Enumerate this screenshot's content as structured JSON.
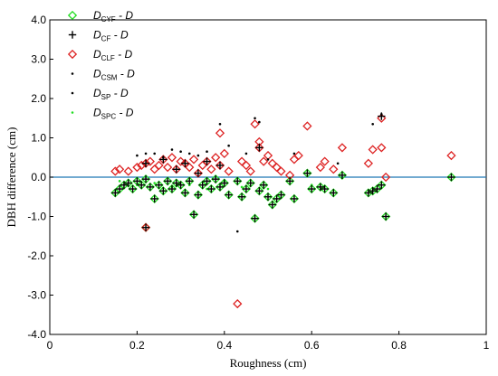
{
  "chart_data": {
    "type": "scatter",
    "title": "",
    "xlabel": "Roughness (cm)",
    "ylabel": "DBH difference (cm)",
    "xlim": [
      0,
      1
    ],
    "ylim": [
      -4,
      4
    ],
    "xticks": [
      0,
      0.2,
      0.4,
      0.6,
      0.8,
      1
    ],
    "xtick_labels": [
      "0",
      "0.2",
      "0.4",
      "0.6",
      "0.8",
      "1"
    ],
    "yticks": [
      -4,
      -3,
      -2,
      -1,
      0,
      1,
      2,
      3,
      4
    ],
    "ytick_labels": [
      "-4.0",
      "-3.0",
      "-2.0",
      "-1.0",
      "0.0",
      "1.0",
      "2.0",
      "3.0",
      "4.0"
    ],
    "grid": false,
    "reference_line": {
      "y": 0,
      "color": "#1f77b4"
    },
    "legend_position": "top-left",
    "legend": [
      {
        "main": "D",
        "sub": "CYF",
        "suffix": " - D",
        "marker": "diamond",
        "color": "#22dd22"
      },
      {
        "main": "D",
        "sub": "CF",
        "suffix": " - D",
        "marker": "plus",
        "color": "#000000"
      },
      {
        "main": "D",
        "sub": "CLF",
        "suffix": " - D",
        "marker": "diamond",
        "color": "#dd2222"
      },
      {
        "main": "D",
        "sub": "CSM",
        "suffix": " - D",
        "marker": "dot",
        "color": "#000000"
      },
      {
        "main": "D",
        "sub": "SP",
        "suffix": " - D",
        "marker": "dot",
        "color": "#000000"
      },
      {
        "main": "D",
        "sub": "SPC",
        "suffix": " - D",
        "marker": "dot",
        "color": "#22dd22"
      }
    ],
    "series": [
      {
        "name": "DCYF - D",
        "marker": "diamond",
        "color": "#22dd22",
        "points": [
          [
            0.15,
            -0.4
          ],
          [
            0.16,
            -0.3
          ],
          [
            0.17,
            -0.2
          ],
          [
            0.18,
            -0.15
          ],
          [
            0.19,
            -0.3
          ],
          [
            0.2,
            -0.1
          ],
          [
            0.21,
            -0.2
          ],
          [
            0.22,
            -1.28
          ],
          [
            0.22,
            -0.05
          ],
          [
            0.23,
            -0.25
          ],
          [
            0.24,
            -0.55
          ],
          [
            0.25,
            -0.2
          ],
          [
            0.26,
            -0.35
          ],
          [
            0.27,
            -0.1
          ],
          [
            0.28,
            -0.3
          ],
          [
            0.29,
            -0.15
          ],
          [
            0.3,
            -0.2
          ],
          [
            0.31,
            -0.4
          ],
          [
            0.32,
            -0.1
          ],
          [
            0.33,
            -0.95
          ],
          [
            0.34,
            -0.45
          ],
          [
            0.35,
            -0.2
          ],
          [
            0.36,
            -0.1
          ],
          [
            0.37,
            -0.3
          ],
          [
            0.38,
            -0.05
          ],
          [
            0.39,
            -0.25
          ],
          [
            0.4,
            -0.15
          ],
          [
            0.41,
            -0.45
          ],
          [
            0.43,
            -0.1
          ],
          [
            0.44,
            -0.5
          ],
          [
            0.45,
            -0.3
          ],
          [
            0.46,
            -0.15
          ],
          [
            0.47,
            -1.05
          ],
          [
            0.48,
            -0.35
          ],
          [
            0.49,
            -0.2
          ],
          [
            0.5,
            -0.5
          ],
          [
            0.51,
            -0.7
          ],
          [
            0.52,
            -0.55
          ],
          [
            0.53,
            -0.45
          ],
          [
            0.55,
            -0.1
          ],
          [
            0.56,
            -0.55
          ],
          [
            0.59,
            0.1
          ],
          [
            0.6,
            -0.3
          ],
          [
            0.62,
            -0.25
          ],
          [
            0.63,
            -0.3
          ],
          [
            0.65,
            -0.4
          ],
          [
            0.67,
            0.05
          ],
          [
            0.73,
            -0.4
          ],
          [
            0.74,
            -0.35
          ],
          [
            0.75,
            -0.3
          ],
          [
            0.76,
            -0.2
          ],
          [
            0.77,
            -1.0
          ],
          [
            0.92,
            0.0
          ]
        ]
      },
      {
        "name": "DCF - D",
        "marker": "plus",
        "color": "#000000",
        "points": [
          [
            0.15,
            -0.4
          ],
          [
            0.16,
            -0.3
          ],
          [
            0.17,
            -0.2
          ],
          [
            0.18,
            -0.15
          ],
          [
            0.19,
            -0.3
          ],
          [
            0.2,
            -0.1
          ],
          [
            0.21,
            -0.2
          ],
          [
            0.22,
            -1.28
          ],
          [
            0.22,
            -0.05
          ],
          [
            0.23,
            -0.25
          ],
          [
            0.24,
            -0.55
          ],
          [
            0.25,
            -0.2
          ],
          [
            0.26,
            -0.35
          ],
          [
            0.27,
            -0.1
          ],
          [
            0.28,
            -0.3
          ],
          [
            0.29,
            -0.15
          ],
          [
            0.3,
            -0.2
          ],
          [
            0.31,
            -0.4
          ],
          [
            0.32,
            -0.1
          ],
          [
            0.33,
            -0.95
          ],
          [
            0.34,
            -0.45
          ],
          [
            0.35,
            -0.2
          ],
          [
            0.36,
            -0.1
          ],
          [
            0.37,
            -0.3
          ],
          [
            0.38,
            -0.05
          ],
          [
            0.39,
            -0.25
          ],
          [
            0.4,
            -0.15
          ],
          [
            0.41,
            -0.45
          ],
          [
            0.43,
            -0.1
          ],
          [
            0.44,
            -0.5
          ],
          [
            0.45,
            -0.3
          ],
          [
            0.46,
            -0.15
          ],
          [
            0.47,
            -1.05
          ],
          [
            0.48,
            -0.35
          ],
          [
            0.49,
            -0.2
          ],
          [
            0.5,
            -0.5
          ],
          [
            0.51,
            -0.7
          ],
          [
            0.52,
            -0.55
          ],
          [
            0.53,
            -0.45
          ],
          [
            0.55,
            -0.1
          ],
          [
            0.56,
            -0.55
          ],
          [
            0.59,
            0.1
          ],
          [
            0.6,
            -0.3
          ],
          [
            0.62,
            -0.25
          ],
          [
            0.63,
            -0.3
          ],
          [
            0.65,
            -0.4
          ],
          [
            0.67,
            0.05
          ],
          [
            0.73,
            -0.4
          ],
          [
            0.74,
            -0.35
          ],
          [
            0.75,
            -0.3
          ],
          [
            0.76,
            -0.2
          ],
          [
            0.77,
            -1.0
          ],
          [
            0.92,
            0.0
          ],
          [
            0.22,
            0.35
          ],
          [
            0.26,
            0.45
          ],
          [
            0.29,
            0.2
          ],
          [
            0.31,
            0.35
          ],
          [
            0.34,
            0.1
          ],
          [
            0.36,
            0.4
          ],
          [
            0.39,
            0.3
          ],
          [
            0.48,
            0.75
          ],
          [
            0.76,
            1.55
          ]
        ]
      },
      {
        "name": "DCLF - D",
        "marker": "diamond",
        "color": "#dd2222",
        "points": [
          [
            0.15,
            0.15
          ],
          [
            0.16,
            0.2
          ],
          [
            0.18,
            0.15
          ],
          [
            0.2,
            0.25
          ],
          [
            0.21,
            0.3
          ],
          [
            0.22,
            0.35
          ],
          [
            0.22,
            -1.28
          ],
          [
            0.23,
            0.4
          ],
          [
            0.24,
            0.2
          ],
          [
            0.25,
            0.3
          ],
          [
            0.26,
            0.45
          ],
          [
            0.27,
            0.25
          ],
          [
            0.28,
            0.5
          ],
          [
            0.29,
            0.2
          ],
          [
            0.3,
            0.4
          ],
          [
            0.31,
            0.35
          ],
          [
            0.32,
            0.25
          ],
          [
            0.33,
            0.45
          ],
          [
            0.34,
            0.1
          ],
          [
            0.35,
            0.3
          ],
          [
            0.36,
            0.4
          ],
          [
            0.37,
            0.2
          ],
          [
            0.38,
            0.5
          ],
          [
            0.39,
            1.12
          ],
          [
            0.39,
            0.3
          ],
          [
            0.4,
            0.6
          ],
          [
            0.41,
            0.15
          ],
          [
            0.43,
            -3.22
          ],
          [
            0.44,
            0.4
          ],
          [
            0.45,
            0.3
          ],
          [
            0.46,
            0.15
          ],
          [
            0.47,
            1.35
          ],
          [
            0.48,
            0.9
          ],
          [
            0.48,
            0.75
          ],
          [
            0.49,
            0.4
          ],
          [
            0.5,
            0.55
          ],
          [
            0.51,
            0.35
          ],
          [
            0.52,
            0.25
          ],
          [
            0.53,
            0.15
          ],
          [
            0.55,
            0.05
          ],
          [
            0.56,
            0.45
          ],
          [
            0.57,
            0.55
          ],
          [
            0.59,
            1.3
          ],
          [
            0.62,
            0.25
          ],
          [
            0.63,
            0.4
          ],
          [
            0.65,
            0.2
          ],
          [
            0.67,
            0.75
          ],
          [
            0.73,
            0.35
          ],
          [
            0.74,
            0.7
          ],
          [
            0.76,
            1.5
          ],
          [
            0.76,
            0.75
          ],
          [
            0.77,
            0.0
          ],
          [
            0.92,
            0.55
          ]
        ]
      },
      {
        "name": "DCSM - D",
        "marker": "dot",
        "color": "#000000",
        "points": [
          [
            0.22,
            0.6
          ],
          [
            0.26,
            0.5
          ],
          [
            0.3,
            0.65
          ],
          [
            0.34,
            0.55
          ],
          [
            0.39,
            1.35
          ],
          [
            0.43,
            -1.38
          ],
          [
            0.47,
            1.5
          ],
          [
            0.48,
            1.4
          ],
          [
            0.74,
            1.35
          ],
          [
            0.76,
            1.6
          ]
        ]
      },
      {
        "name": "DSP - D",
        "marker": "dot",
        "color": "#000000",
        "points": [
          [
            0.2,
            0.55
          ],
          [
            0.24,
            0.6
          ],
          [
            0.28,
            0.7
          ],
          [
            0.32,
            0.6
          ],
          [
            0.36,
            0.65
          ],
          [
            0.41,
            0.8
          ],
          [
            0.45,
            0.6
          ],
          [
            0.5,
            0.45
          ],
          [
            0.56,
            0.6
          ],
          [
            0.66,
            0.35
          ]
        ]
      },
      {
        "name": "DSPC - D",
        "marker": "dot",
        "color": "#22dd22",
        "points": [
          [
            0.16,
            -0.1
          ],
          [
            0.2,
            -0.2
          ],
          [
            0.24,
            -0.15
          ],
          [
            0.28,
            -0.25
          ],
          [
            0.32,
            -0.2
          ],
          [
            0.36,
            -0.3
          ],
          [
            0.4,
            -0.1
          ],
          [
            0.44,
            -0.25
          ],
          [
            0.5,
            -0.3
          ],
          [
            0.6,
            -0.2
          ]
        ]
      }
    ]
  }
}
